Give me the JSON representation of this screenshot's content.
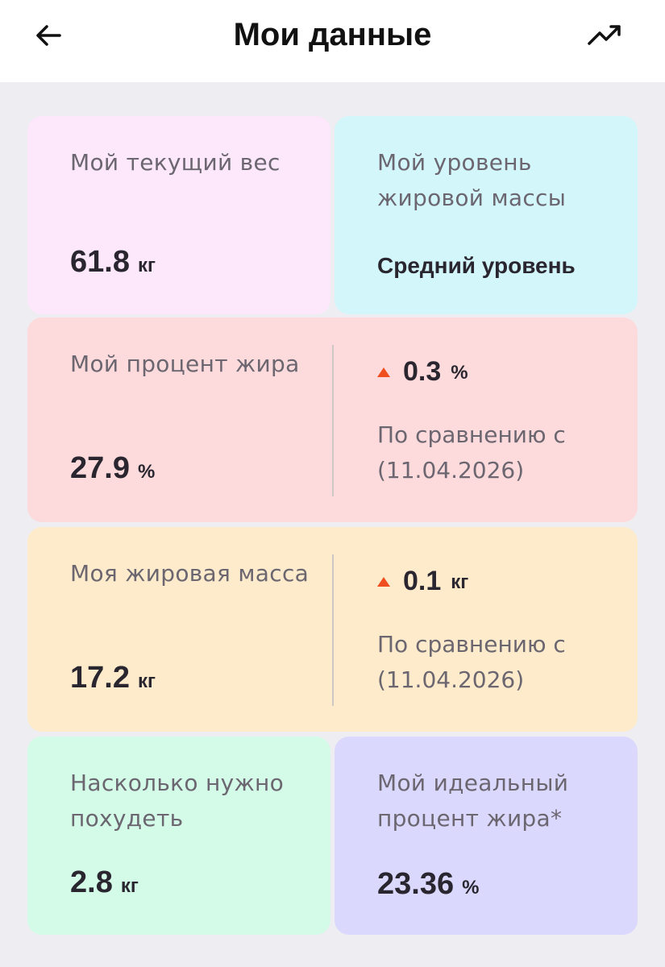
{
  "header": {
    "title": "Мои данные",
    "back_icon": "arrow-left-icon",
    "trend_icon": "trending-up-icon"
  },
  "cards": {
    "weight": {
      "label": "Мой текущий вес",
      "value": "61.8",
      "unit": "кг"
    },
    "fat_level": {
      "label": "Мой уровень жировой массы",
      "value": "Средний уровень"
    },
    "fat_percent": {
      "label": "Мой процент жира",
      "value": "27.9",
      "unit": "%",
      "delta": "0.3",
      "delta_unit": "%",
      "compare_label": "По сравнению с",
      "compare_date": "(11.04.2026)"
    },
    "fat_mass": {
      "label": "Моя жировая масса",
      "value": "17.2",
      "unit": "кг",
      "delta": "0.1",
      "delta_unit": "кг",
      "compare_label": "По сравнению с",
      "compare_date": "(11.04.2026)"
    },
    "to_lose": {
      "label": "Насколько нужно похудеть",
      "value": "2.8",
      "unit": "кг"
    },
    "ideal_fat": {
      "label": "Мой идеальный процент жира*",
      "value": "23.36",
      "unit": "%"
    }
  },
  "colors": {
    "weight_bg": "#fce7fb",
    "fat_level_bg": "#d3f6fb",
    "fat_percent_bg": "#fddbdc",
    "fat_mass_bg": "#fdebcb",
    "to_lose_bg": "#d3fbe8",
    "ideal_fat_bg": "#dad9fd",
    "delta_up": "#f04e1e"
  }
}
